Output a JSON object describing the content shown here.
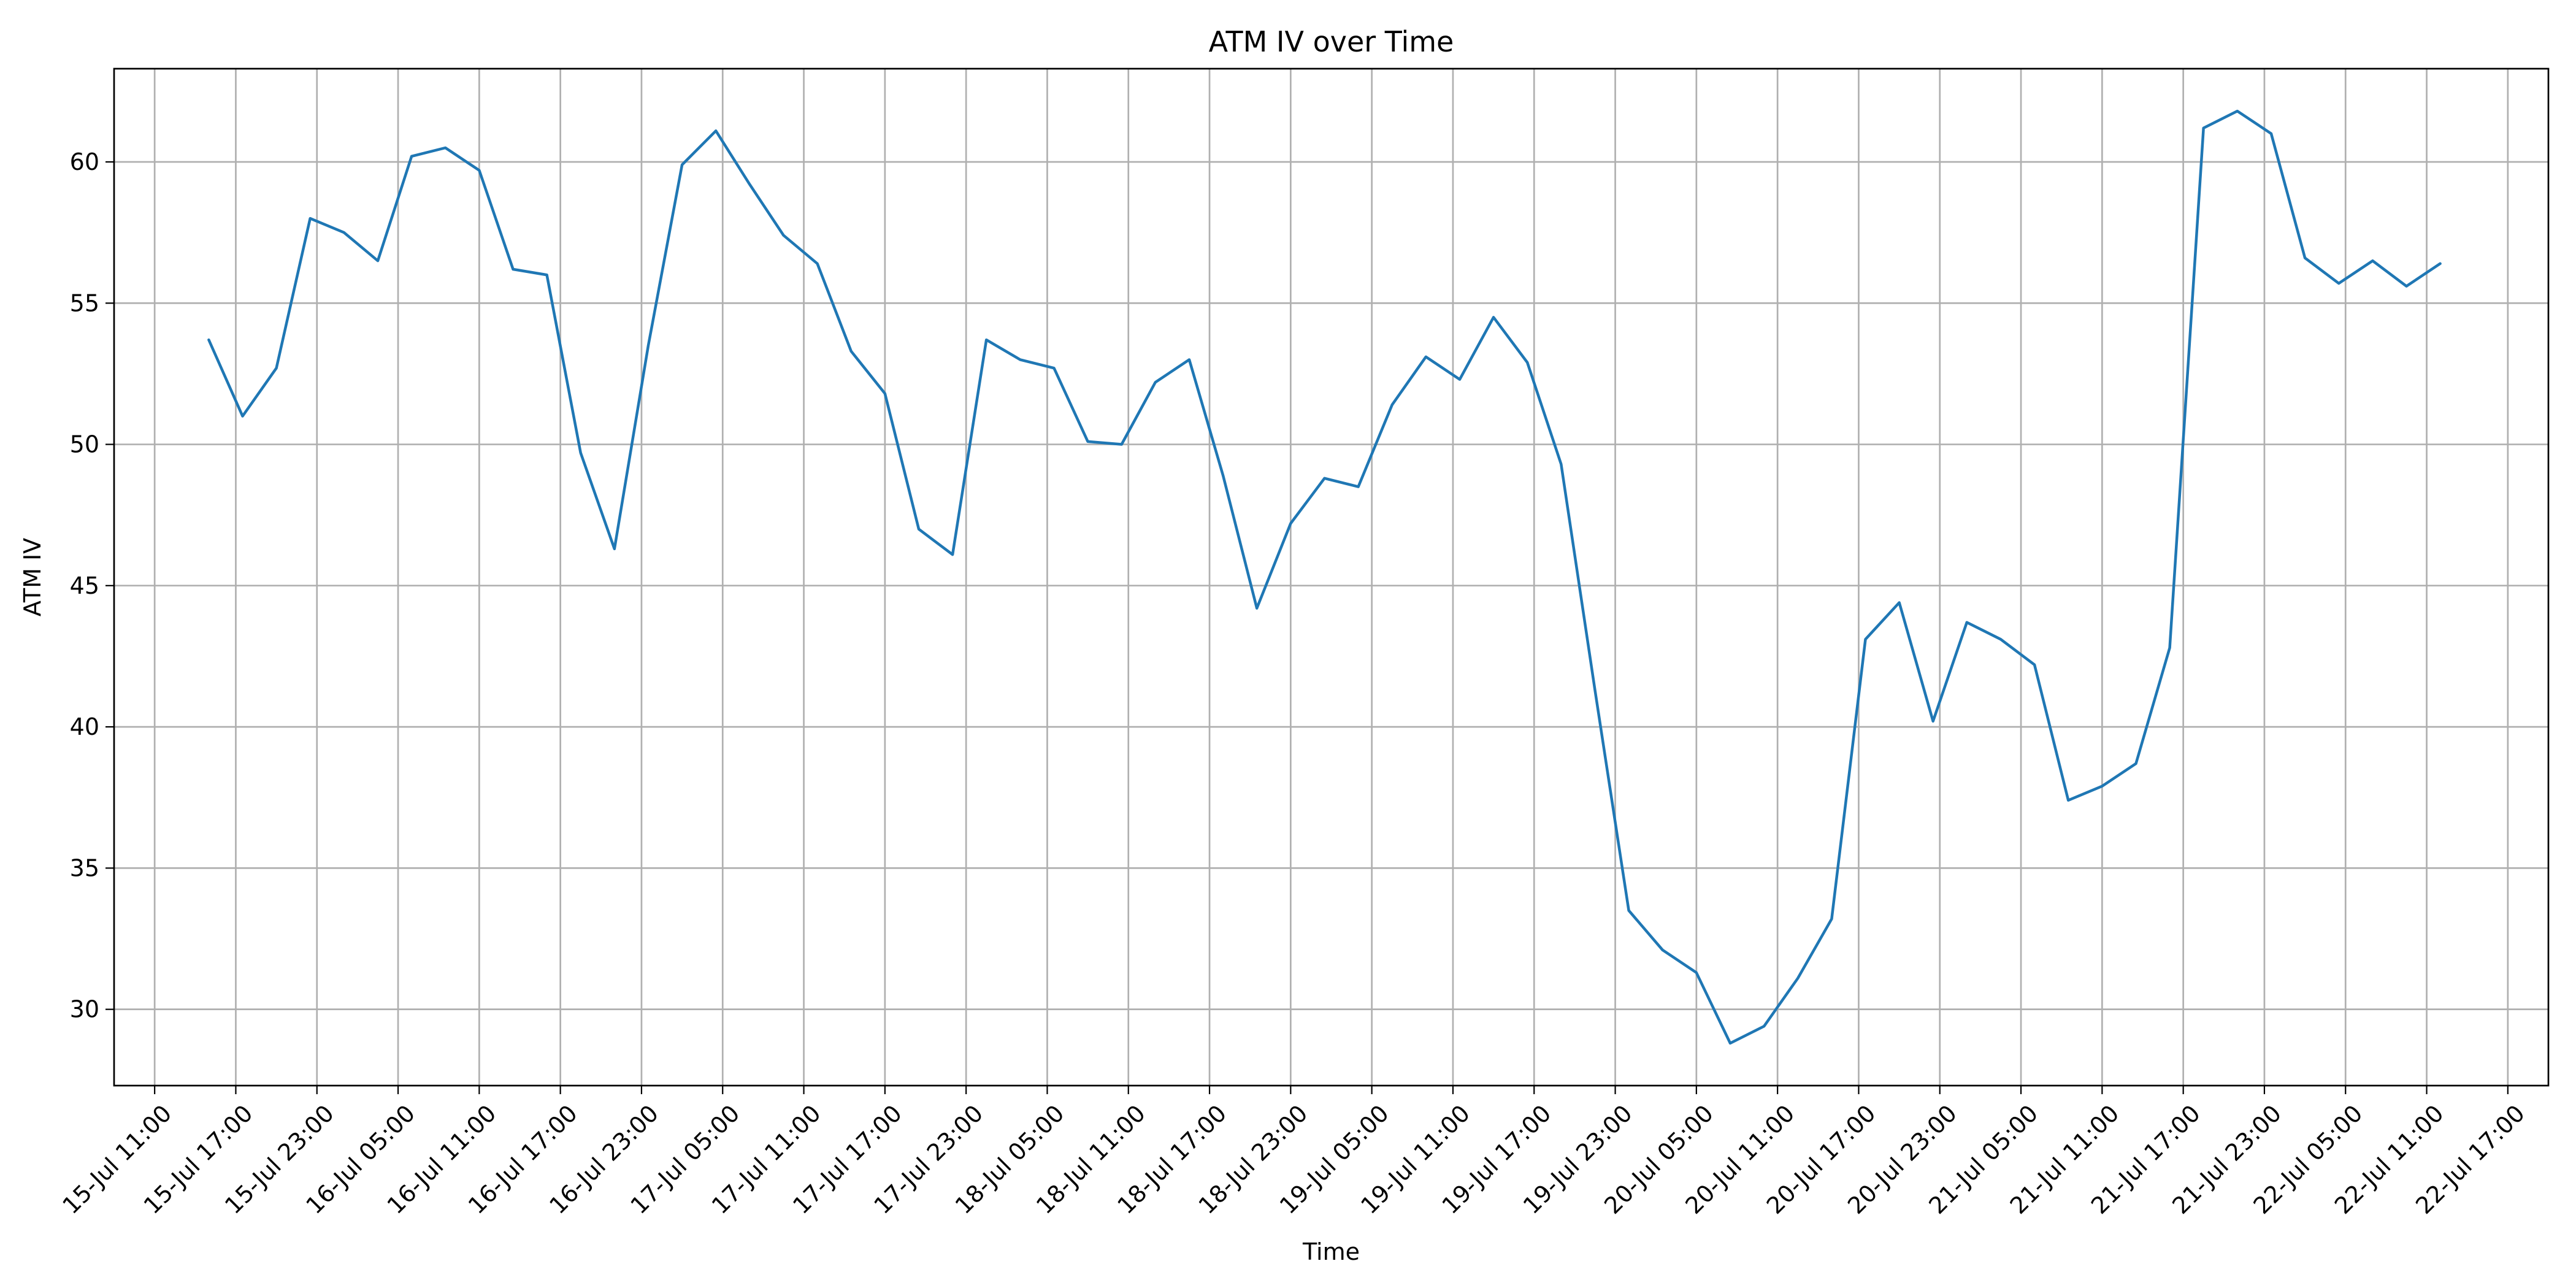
{
  "chart_data": {
    "type": "line",
    "title": "ATM IV over Time",
    "xlabel": "Time",
    "ylabel": "ATM IV",
    "grid": true,
    "xlim": [
      "2025-07-15 08:00",
      "2025-07-22 20:00"
    ],
    "ylim": [
      27.3,
      63.3
    ],
    "x_ticks": [
      "2025-07-15 11:00",
      "2025-07-15 17:00",
      "2025-07-15 23:00",
      "2025-07-16 05:00",
      "2025-07-16 11:00",
      "2025-07-16 17:00",
      "2025-07-16 23:00",
      "2025-07-17 05:00",
      "2025-07-17 11:00",
      "2025-07-17 17:00",
      "2025-07-17 23:00",
      "2025-07-18 05:00",
      "2025-07-18 11:00",
      "2025-07-18 17:00",
      "2025-07-18 23:00",
      "2025-07-19 05:00",
      "2025-07-19 11:00",
      "2025-07-19 17:00",
      "2025-07-19 23:00",
      "2025-07-20 05:00",
      "2025-07-20 11:00",
      "2025-07-20 17:00",
      "2025-07-20 23:00",
      "2025-07-21 05:00",
      "2025-07-21 11:00",
      "2025-07-21 17:00",
      "2025-07-21 23:00",
      "2025-07-22 05:00",
      "2025-07-22 11:00",
      "2025-07-22 17:00"
    ],
    "x_tick_labels": [
      "15-Jul 11:00",
      "15-Jul 17:00",
      "15-Jul 23:00",
      "16-Jul 05:00",
      "16-Jul 11:00",
      "16-Jul 17:00",
      "16-Jul 23:00",
      "17-Jul 05:00",
      "17-Jul 11:00",
      "17-Jul 17:00",
      "17-Jul 23:00",
      "18-Jul 05:00",
      "18-Jul 11:00",
      "18-Jul 17:00",
      "18-Jul 23:00",
      "19-Jul 05:00",
      "19-Jul 11:00",
      "19-Jul 17:00",
      "19-Jul 23:00",
      "20-Jul 05:00",
      "20-Jul 11:00",
      "20-Jul 17:00",
      "20-Jul 23:00",
      "21-Jul 05:00",
      "21-Jul 11:00",
      "21-Jul 17:00",
      "21-Jul 23:00",
      "22-Jul 05:00",
      "22-Jul 11:00",
      "22-Jul 17:00"
    ],
    "y_ticks": [
      30,
      35,
      40,
      45,
      50,
      55,
      60
    ],
    "y_tick_labels": [
      "30",
      "35",
      "40",
      "45",
      "50",
      "55",
      "60"
    ],
    "series": [
      {
        "color": "#1f77b4",
        "x": [
          "2025-07-15 15:00",
          "2025-07-15 17:30",
          "2025-07-15 20:00",
          "2025-07-15 22:30",
          "2025-07-16 01:00",
          "2025-07-16 03:30",
          "2025-07-16 06:00",
          "2025-07-16 08:30",
          "2025-07-16 11:00",
          "2025-07-16 13:30",
          "2025-07-16 16:00",
          "2025-07-16 18:30",
          "2025-07-16 21:00",
          "2025-07-16 23:30",
          "2025-07-17 02:00",
          "2025-07-17 04:30",
          "2025-07-17 07:00",
          "2025-07-17 09:30",
          "2025-07-17 12:00",
          "2025-07-17 14:30",
          "2025-07-17 17:00",
          "2025-07-17 19:30",
          "2025-07-17 22:00",
          "2025-07-18 00:30",
          "2025-07-18 03:00",
          "2025-07-18 05:30",
          "2025-07-18 08:00",
          "2025-07-18 10:30",
          "2025-07-18 13:00",
          "2025-07-18 15:30",
          "2025-07-18 18:00",
          "2025-07-18 20:30",
          "2025-07-18 23:00",
          "2025-07-19 01:30",
          "2025-07-19 04:00",
          "2025-07-19 06:30",
          "2025-07-19 09:00",
          "2025-07-19 11:30",
          "2025-07-19 14:00",
          "2025-07-19 16:30",
          "2025-07-19 19:00",
          "2025-07-19 21:30",
          "2025-07-20 00:00",
          "2025-07-20 02:30",
          "2025-07-20 05:00",
          "2025-07-20 07:30",
          "2025-07-20 10:00",
          "2025-07-20 12:30",
          "2025-07-20 15:00",
          "2025-07-20 17:30",
          "2025-07-20 20:00",
          "2025-07-20 22:30",
          "2025-07-21 01:00",
          "2025-07-21 03:30",
          "2025-07-21 06:00",
          "2025-07-21 08:30",
          "2025-07-21 11:00",
          "2025-07-21 13:30",
          "2025-07-21 16:00",
          "2025-07-21 18:30",
          "2025-07-21 21:00",
          "2025-07-21 23:30",
          "2025-07-22 02:00",
          "2025-07-22 04:30",
          "2025-07-22 07:00",
          "2025-07-22 09:30",
          "2025-07-22 12:00"
        ],
        "y": [
          53.7,
          51.0,
          52.7,
          58.0,
          57.5,
          56.5,
          60.2,
          60.5,
          59.7,
          56.2,
          56.0,
          49.7,
          46.3,
          53.5,
          59.9,
          61.1,
          59.2,
          57.4,
          56.4,
          53.3,
          51.8,
          47.0,
          46.1,
          53.7,
          53.0,
          52.7,
          50.1,
          50.0,
          52.2,
          53.0,
          48.9,
          44.2,
          47.2,
          48.8,
          48.5,
          51.4,
          53.1,
          52.3,
          54.5,
          52.9,
          49.3,
          41.3,
          33.5,
          32.1,
          31.3,
          28.8,
          29.4,
          31.1,
          33.2,
          43.1,
          44.4,
          40.2,
          43.7,
          43.1,
          42.2,
          37.4,
          37.9,
          38.7,
          42.8,
          61.2,
          61.8,
          61.0,
          56.6,
          55.7,
          56.5,
          55.6,
          56.4
        ]
      }
    ]
  }
}
